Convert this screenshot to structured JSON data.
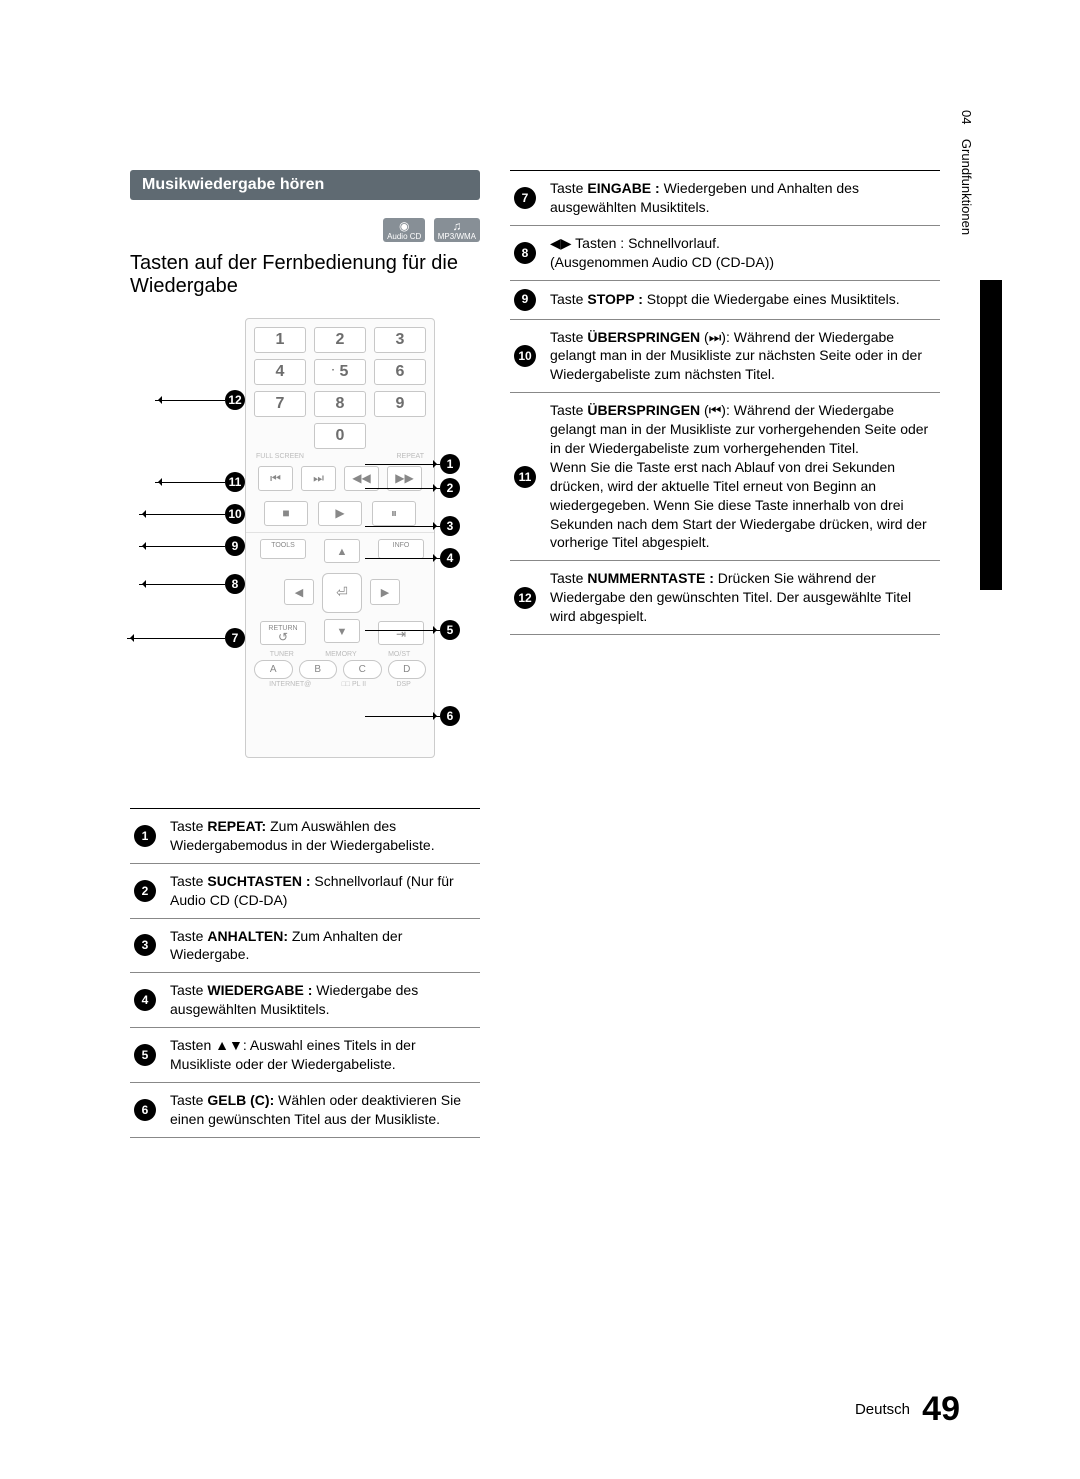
{
  "sidebar": {
    "chapter": "04",
    "section": "Grundfunktionen"
  },
  "header": {
    "section_title": "Musikwiedergabe hören",
    "chip_audio": "Audio CD",
    "chip_mp3": "MP3/WMA",
    "page_subtitle": "Tasten auf der Fernbedienung für die Wiedergabe"
  },
  "remote": {
    "numbers": [
      "1",
      "2",
      "3",
      "4",
      "5",
      "6",
      "7",
      "8",
      "9",
      "",
      "0",
      ""
    ],
    "five_dot": "·",
    "label_fullscreen": "FULL SCREEN",
    "label_repeat": "REPEAT",
    "transport": {
      "prev": "⏮",
      "next": "⏭",
      "rew": "◀◀",
      "ff": "▶▶"
    },
    "play_row": {
      "stop": "■",
      "play": "▶",
      "pause": "⏸"
    },
    "nav": {
      "tools": "TOOLS",
      "info": "INFO",
      "return_label": "RETURN",
      "return_sym": "↺",
      "exit": "⇥",
      "enter": "⏎",
      "up": "▲",
      "down": "▼",
      "left": "◀",
      "right": "▶"
    },
    "tiny": {
      "tuner": "TUNER",
      "memory": "MEMORY",
      "molist": "MO/ST"
    },
    "letters": {
      "a": "A",
      "b": "B",
      "c": "C",
      "d": "D"
    },
    "bottom": {
      "internet": "INTERNET@",
      "pl2": "□□ PL II",
      "dsp": "DSP"
    }
  },
  "left_callouts": {
    "n12": "12",
    "n11": "11",
    "n10": "10",
    "n9": "9",
    "n8": "8",
    "n7": "7"
  },
  "right_callouts": {
    "n1": "1",
    "n2": "2",
    "n3": "3",
    "n4": "4",
    "n5": "5",
    "n6": "6"
  },
  "table_left": [
    {
      "n": "1",
      "text": "Taste <strong>REPEAT:</strong> Zum Auswählen des Wiedergabemodus in der Wiedergabeliste."
    },
    {
      "n": "2",
      "text": "Taste <strong>SUCHTASTEN :</strong> Schnellvorlauf (Nur für Audio CD (CD-DA)"
    },
    {
      "n": "3",
      "text": "Taste <strong>ANHALTEN:</strong> Zum Anhalten der Wiedergabe."
    },
    {
      "n": "4",
      "text": "Taste <strong>WIEDERGABE :</strong> Wiedergabe des ausgewählten Musiktitels."
    },
    {
      "n": "5",
      "text": "Tasten ▲▼: Auswahl eines Titels in der Musikliste oder der Wiedergabeliste."
    },
    {
      "n": "6",
      "text": "Taste <strong>GELB (C):</strong> Wählen oder deaktivieren Sie einen gewünschten Titel aus der Musikliste."
    }
  ],
  "table_right": [
    {
      "n": "7",
      "text": "Taste <strong>EINGABE :</strong> Wiedergeben und Anhalten des ausgewählten Musiktitels."
    },
    {
      "n": "8",
      "text": "◀▶ Tasten : Schnellvorlauf.<br>(Ausgenommen Audio CD (CD-DA))"
    },
    {
      "n": "9",
      "text": "Taste <strong>STOPP :</strong> Stoppt die Wiedergabe eines Musiktitels."
    },
    {
      "n": "10",
      "text": "Taste <strong>ÜBERSPRINGEN</strong> (⏭): Während der Wiedergabe gelangt man in der Musikliste zur nächsten Seite oder in der Wiedergabeliste zum nächsten Titel."
    },
    {
      "n": "11",
      "text": "Taste <strong>ÜBERSPRINGEN</strong> (⏮): Während der Wiedergabe gelangt man in der Musikliste zur vorhergehenden Seite oder in der Wiedergabeliste zum vorhergehenden Titel.<br>Wenn Sie die Taste erst nach Ablauf von drei Sekunden drücken, wird der aktuelle Titel erneut von Beginn an wiedergegeben. Wenn Sie diese Taste innerhalb von drei Sekunden nach dem Start der Wiedergabe drücken, wird der vorherige Titel abgespielt."
    },
    {
      "n": "12",
      "text": "Taste <strong>NUMMERNTASTE :</strong> Drücken Sie während der Wiedergabe den gewünschten Titel. Der ausgewählte Titel wird abgespielt."
    }
  ],
  "footer": {
    "lang": "Deutsch",
    "page": "49"
  }
}
